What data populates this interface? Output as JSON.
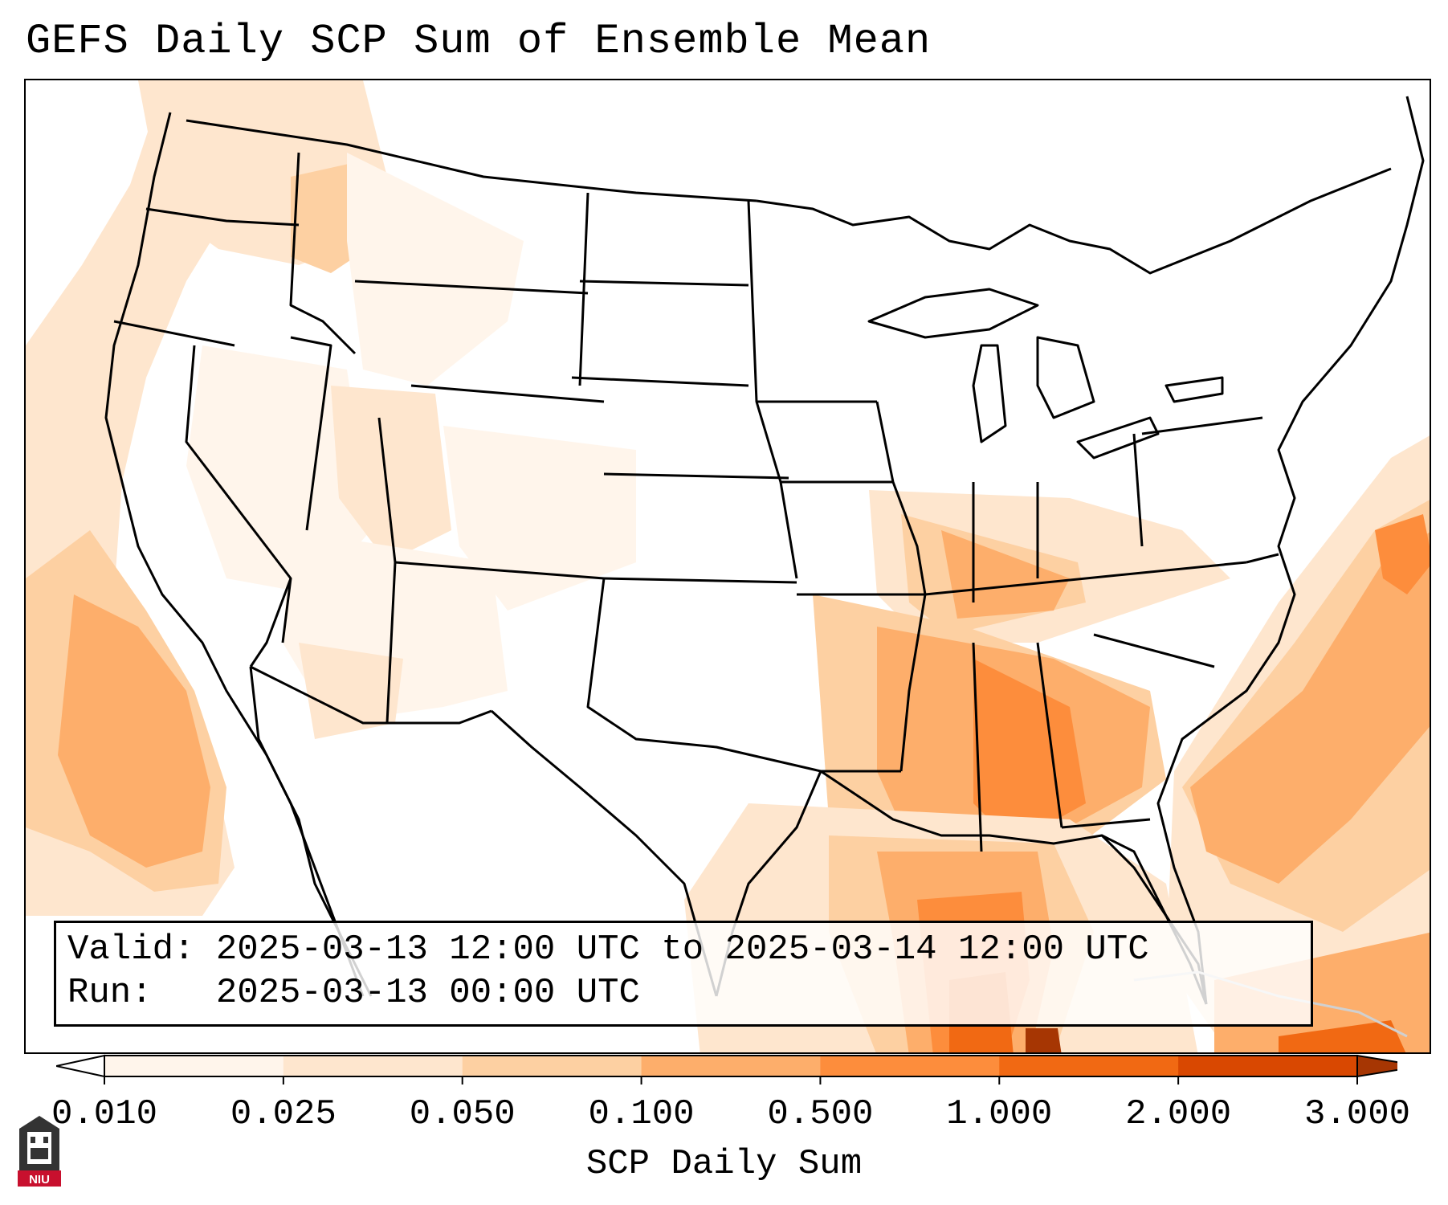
{
  "title": "GEFS Daily SCP Sum of Ensemble Mean",
  "info": {
    "valid_label": "Valid:",
    "valid_value": "2025-03-13 12:00 UTC to 2025-03-14 12:00 UTC",
    "run_label": "Run:",
    "run_value": "2025-03-13 00:00 UTC"
  },
  "colorbar": {
    "label": "SCP Daily Sum",
    "ticks": [
      "0.010",
      "0.025",
      "0.050",
      "0.100",
      "0.500",
      "1.000",
      "2.000",
      "3.000"
    ],
    "colors": [
      "#fff5eb",
      "#fee6ce",
      "#fdd0a2",
      "#fdae6b",
      "#fd8d3c",
      "#f16913",
      "#d94801",
      "#a63603"
    ],
    "extend": "both"
  },
  "logo": {
    "text": "NIU"
  },
  "map": {
    "region": "Continental United States",
    "field": "SCP daily sum shading",
    "max_area": "Gulf of Mexico near Alabama / Florida panhandle",
    "colors": {
      "light": "#fee6ce",
      "lighter": "#fff5eb",
      "mid": "#fdd0a2",
      "orange": "#fdae6b",
      "strong": "#fd8d3c",
      "deep": "#f16913",
      "darkest": "#a63603"
    }
  }
}
